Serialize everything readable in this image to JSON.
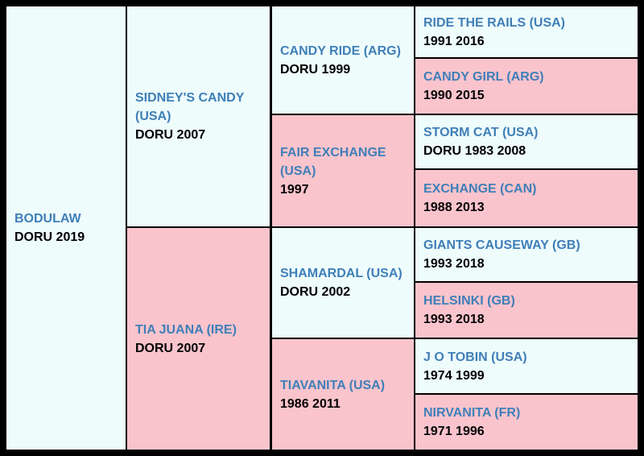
{
  "colors": {
    "sire_bg": "#eefcfc",
    "dam_bg": "#fac4cc",
    "name": "#3f7fb8",
    "border": "#000000"
  },
  "subject": {
    "name": "BODULAW",
    "info": "DORU 2019"
  },
  "sire": {
    "name": "SIDNEY'S CANDY (USA)",
    "info": "DORU 2007"
  },
  "dam": {
    "name": "TIA JUANA (IRE)",
    "info": "DORU 2007"
  },
  "sire_sire": {
    "name": "CANDY RIDE (ARG)",
    "info": "DORU 1999"
  },
  "sire_dam": {
    "name": "FAIR EXCHANGE (USA)",
    "info": "1997"
  },
  "dam_sire": {
    "name": "SHAMARDAL (USA)",
    "info": "DORU 2002"
  },
  "dam_dam": {
    "name": "TIAVANITA (USA)",
    "info": "1986 2011"
  },
  "ggp": [
    {
      "name": "RIDE THE RAILS (USA)",
      "info": "1991 2016"
    },
    {
      "name": "CANDY GIRL (ARG)",
      "info": "1990 2015"
    },
    {
      "name": "STORM CAT (USA)",
      "info": "DORU 1983 2008"
    },
    {
      "name": "EXCHANGE (CAN)",
      "info": "1988 2013"
    },
    {
      "name": "GIANTS CAUSEWAY (GB)",
      "info": "1993 2018"
    },
    {
      "name": "HELSINKI (GB)",
      "info": "1993 2018"
    },
    {
      "name": "J O TOBIN (USA)",
      "info": "1974 1999"
    },
    {
      "name": "NIRVANITA (FR)",
      "info": "1971 1996"
    }
  ]
}
